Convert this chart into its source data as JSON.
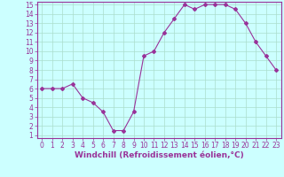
{
  "x": [
    0,
    1,
    2,
    3,
    4,
    5,
    6,
    7,
    8,
    9,
    10,
    11,
    12,
    13,
    14,
    15,
    16,
    17,
    18,
    19,
    20,
    21,
    22,
    23
  ],
  "y": [
    6,
    6,
    6,
    6.5,
    5,
    4.5,
    3.5,
    1.5,
    1.5,
    3.5,
    9.5,
    10,
    12,
    13.5,
    15,
    14.5,
    15,
    15,
    15,
    14.5,
    13,
    11,
    9.5,
    8
  ],
  "line_color": "#993399",
  "marker": "D",
  "marker_size": 2,
  "bg_color": "#ccffff",
  "grid_color": "#aaddcc",
  "xlabel": "Windchill (Refroidissement éolien,°C)",
  "xlabel_color": "#993399",
  "ylim_min": 1,
  "ylim_max": 15,
  "xlim_min": 0,
  "xlim_max": 23,
  "yticks": [
    1,
    2,
    3,
    4,
    5,
    6,
    7,
    8,
    9,
    10,
    11,
    12,
    13,
    14,
    15
  ],
  "xticks": [
    0,
    1,
    2,
    3,
    4,
    5,
    6,
    7,
    8,
    9,
    10,
    11,
    12,
    13,
    14,
    15,
    16,
    17,
    18,
    19,
    20,
    21,
    22,
    23
  ],
  "tick_fontsize": 5.5,
  "xlabel_fontsize": 6.5
}
